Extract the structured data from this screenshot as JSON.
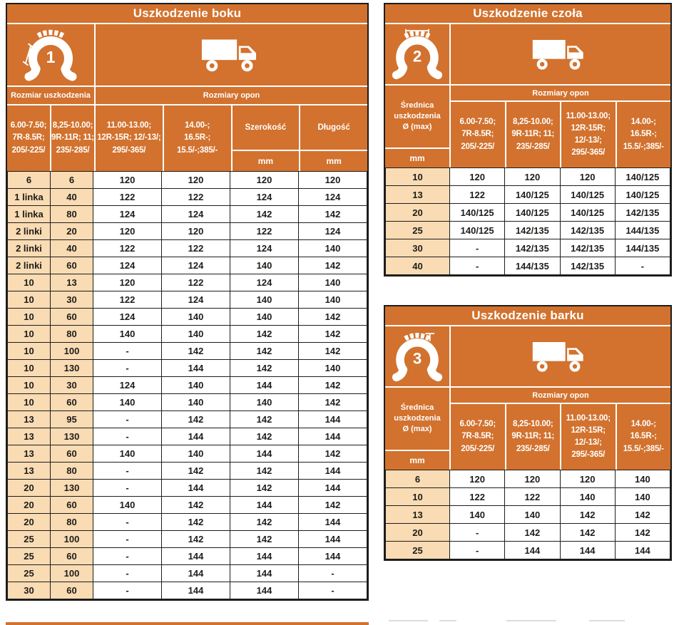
{
  "colors": {
    "orange": "#d2722e",
    "beige": "#f9dbb4",
    "border_dark": "#1d1d1b",
    "text_dark": "#1d1d1b",
    "header_text": "#ffffff"
  },
  "shared": {
    "tire_sizes_label": "Rozmiary opon",
    "unit": "mm",
    "size_headers_3col_wrap": [
      "6.00-7.50;\n7R-8.5R;\n205/-225/",
      "8,25-10.00;\n9R-11R; 11;\n235/-285/",
      "11.00-13.00;\n12R-15R; 12/-13/;\n295/-365/",
      "14.00-;\n16.5R-;\n15.5/-;385/-"
    ],
    "size_headers_4col_wrap": [
      "6.00-7.50;\n7R-8.5R;\n205/-225/",
      "8,25-10.00;\n9R-11R; 11;\n235/-285/",
      "11.00-13.00;\n12R-15R;\n12/-13/;\n295/-365/",
      "14.00-;\n16.5R-;\n15.5/-;385/-"
    ]
  },
  "tables": {
    "boku": {
      "title": "Uszkodzenie boku",
      "icon_number": "1",
      "icon_name": "sidewall-damage-tire-icon",
      "damage_size_label": "Rozmiar uszkodzenia",
      "width_label": "Szerokość",
      "length_label": "Długość",
      "rows": [
        [
          "6",
          "6",
          "120",
          "120",
          "120",
          "120"
        ],
        [
          "1 linka",
          "40",
          "122",
          "122",
          "124",
          "124"
        ],
        [
          "1 linka",
          "80",
          "124",
          "124",
          "142",
          "142"
        ],
        [
          "2 linki",
          "20",
          "120",
          "120",
          "122",
          "124"
        ],
        [
          "2 linki",
          "40",
          "122",
          "122",
          "124",
          "140"
        ],
        [
          "2 linki",
          "60",
          "124",
          "124",
          "140",
          "142"
        ],
        [
          "10",
          "13",
          "120",
          "122",
          "124",
          "140"
        ],
        [
          "10",
          "30",
          "122",
          "124",
          "140",
          "140"
        ],
        [
          "10",
          "60",
          "124",
          "140",
          "140",
          "142"
        ],
        [
          "10",
          "80",
          "140",
          "140",
          "142",
          "142"
        ],
        [
          "10",
          "100",
          "-",
          "142",
          "142",
          "142"
        ],
        [
          "10",
          "130",
          "-",
          "144",
          "142",
          "140"
        ],
        [
          "10",
          "30",
          "124",
          "140",
          "144",
          "142"
        ],
        [
          "10",
          "60",
          "140",
          "140",
          "140",
          "142"
        ],
        [
          "13",
          "95",
          "-",
          "142",
          "142",
          "144"
        ],
        [
          "13",
          "130",
          "-",
          "144",
          "142",
          "144"
        ],
        [
          "13",
          "60",
          "140",
          "140",
          "144",
          "142"
        ],
        [
          "13",
          "80",
          "-",
          "142",
          "142",
          "144"
        ],
        [
          "20",
          "130",
          "-",
          "144",
          "142",
          "144"
        ],
        [
          "20",
          "60",
          "140",
          "142",
          "144",
          "142"
        ],
        [
          "20",
          "80",
          "-",
          "142",
          "142",
          "144"
        ],
        [
          "25",
          "100",
          "-",
          "142",
          "142",
          "144"
        ],
        [
          "25",
          "60",
          "-",
          "144",
          "144",
          "144"
        ],
        [
          "25",
          "100",
          "-",
          "144",
          "144",
          "-"
        ],
        [
          "30",
          "60",
          "-",
          "144",
          "144",
          "-"
        ]
      ]
    },
    "czola": {
      "title": "Uszkodzenie czoła",
      "icon_number": "2",
      "icon_name": "tread-damage-tire-icon",
      "diameter_label": "Średnica\nuszkodzenia\nØ (max)",
      "rows": [
        [
          "10",
          "120",
          "120",
          "120",
          "140/125"
        ],
        [
          "13",
          "122",
          "140/125",
          "140/125",
          "140/125"
        ],
        [
          "20",
          "140/125",
          "140/125",
          "140/125",
          "142/135"
        ],
        [
          "25",
          "140/125",
          "142/135",
          "142/135",
          "144/135"
        ],
        [
          "30",
          "-",
          "142/135",
          "142/135",
          "144/135"
        ],
        [
          "40",
          "-",
          "144/135",
          "142/135",
          "-"
        ]
      ]
    },
    "barku": {
      "title": "Uszkodzenie barku",
      "icon_number": "3",
      "icon_name": "shoulder-damage-tire-icon",
      "diameter_label": "Średnica\nuszkodzenia\nØ (max)",
      "rows": [
        [
          "6",
          "120",
          "120",
          "120",
          "140"
        ],
        [
          "10",
          "122",
          "122",
          "140",
          "140"
        ],
        [
          "13",
          "140",
          "140",
          "142",
          "142"
        ],
        [
          "20",
          "-",
          "142",
          "142",
          "142"
        ],
        [
          "25",
          "-",
          "144",
          "144",
          "144"
        ]
      ]
    }
  }
}
